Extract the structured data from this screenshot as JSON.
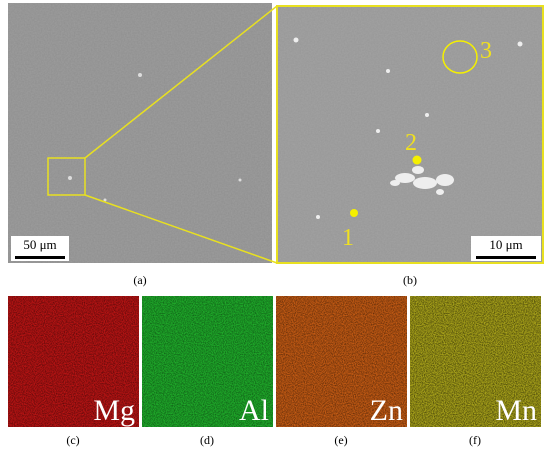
{
  "panels": [
    {
      "label": "(a)",
      "scale_bar": "50 μm"
    },
    {
      "label": "(b)",
      "scale_bar": "10 μm",
      "points": [
        "1",
        "2",
        "3"
      ]
    },
    {
      "label": "(c)",
      "element": "Mg"
    },
    {
      "label": "(d)",
      "element": "Al"
    },
    {
      "label": "(e)",
      "element": "Zn"
    },
    {
      "label": "(f)",
      "element": "Mn"
    }
  ]
}
